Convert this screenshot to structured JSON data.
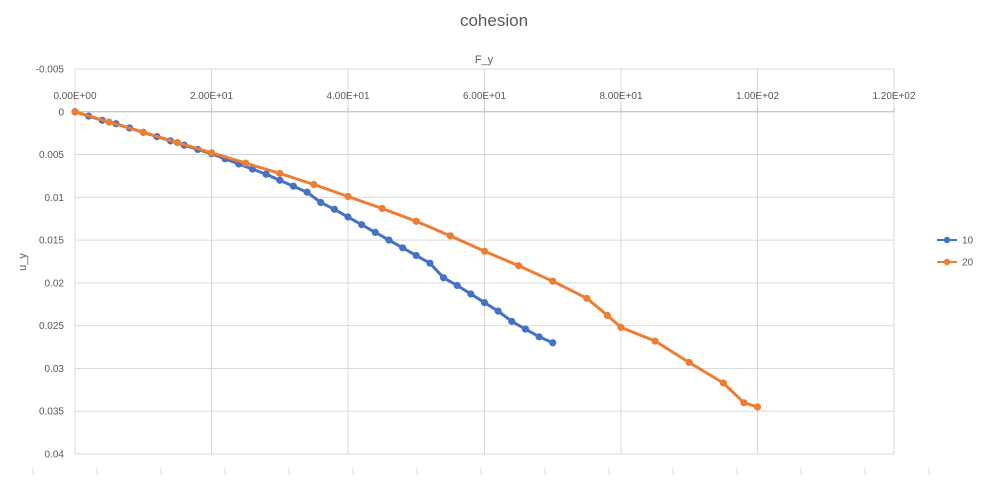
{
  "chart_data": {
    "type": "scatter",
    "title": "cohesion",
    "xlabel": "F_y",
    "ylabel": "u_y",
    "xlim": [
      0,
      120
    ],
    "ylim": [
      -0.005,
      0.04
    ],
    "y_axis_reversed": true,
    "x_axis_position": "top",
    "x_tick_values": [
      0,
      20,
      40,
      60,
      80,
      100,
      120
    ],
    "x_tick_labels": [
      "0.00E+00",
      "2.00E+01",
      "4.00E+01",
      "6.00E+01",
      "8.00E+01",
      "1.00E+02",
      "1.20E+02"
    ],
    "y_tick_values": [
      -0.005,
      0,
      0.005,
      0.01,
      0.015,
      0.02,
      0.025,
      0.03,
      0.035,
      0.04
    ],
    "y_tick_labels": [
      "-0.005",
      "0",
      "0.005",
      "0.01",
      "0.015",
      "0.02",
      "0.025",
      "0.03",
      "0.035",
      "0.04"
    ],
    "grid": true,
    "legend_position": "right",
    "series": [
      {
        "name": "10",
        "color": "#4472C4",
        "x": [
          0,
          2,
          4,
          6,
          8,
          10,
          12,
          14,
          16,
          18,
          20,
          22,
          24,
          26,
          28,
          30,
          32,
          34,
          36,
          38,
          40,
          42,
          44,
          46,
          48,
          50,
          52,
          54,
          56,
          58,
          60,
          62,
          64,
          66,
          68,
          70
        ],
        "y": [
          0,
          0.0005,
          0.001,
          0.0014,
          0.0019,
          0.0024,
          0.0029,
          0.0034,
          0.0039,
          0.0044,
          0.0049,
          0.0055,
          0.0061,
          0.0067,
          0.0073,
          0.008,
          0.0087,
          0.0094,
          0.0106,
          0.0114,
          0.0123,
          0.0132,
          0.0141,
          0.015,
          0.0159,
          0.0168,
          0.0177,
          0.0194,
          0.0203,
          0.0213,
          0.0223,
          0.0233,
          0.0245,
          0.0254,
          0.0263,
          0.027
        ]
      },
      {
        "name": "20",
        "color": "#ED7D31",
        "x": [
          0,
          5,
          10,
          15,
          20,
          25,
          30,
          35,
          40,
          45,
          50,
          55,
          60,
          65,
          70,
          75,
          78,
          80,
          85,
          90,
          95,
          98,
          100
        ],
        "y": [
          0,
          0.0012,
          0.0024,
          0.0036,
          0.0048,
          0.006,
          0.0072,
          0.0085,
          0.0099,
          0.0113,
          0.0128,
          0.0145,
          0.0163,
          0.018,
          0.0198,
          0.0218,
          0.0238,
          0.0252,
          0.0268,
          0.0293,
          0.0317,
          0.034,
          0.0345
        ]
      }
    ]
  }
}
